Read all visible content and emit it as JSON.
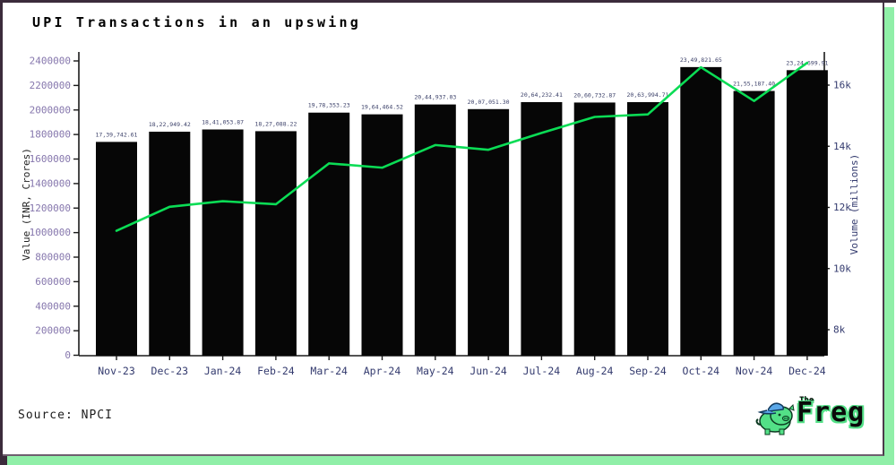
{
  "header": {
    "title": "UPI Transactions in an upswing"
  },
  "footer": {
    "source": "Source: NPCI",
    "logo_the": "The",
    "logo_freg": "Freg"
  },
  "colors": {
    "bar_fill": "#060606",
    "line_green": "#0bdc55",
    "left_tick_text": "#8677ad",
    "navy_tick_text": "#333a6e",
    "bar_label_text": "#3a3f68",
    "axis_line": "#1a1a1a",
    "axis_label_text": "#222222",
    "frame_border": "#3b2b3b",
    "shadow_green": "#90efa8",
    "logo_green": "#53e087",
    "logo_cap_blue": "#5aa7e8"
  },
  "chart_data": {
    "type": "bar",
    "title": "UPI Transactions in an upswing",
    "xlabel": "",
    "ylabel_left": "Value (INR, Crores)",
    "ylabel_right": "Volume (millions)",
    "legend": "none",
    "grid": false,
    "categories": [
      "Nov-23",
      "Dec-23",
      "Jan-24",
      "Feb-24",
      "Mar-24",
      "Apr-24",
      "May-24",
      "Jun-24",
      "Jul-24",
      "Aug-24",
      "Sep-24",
      "Oct-24",
      "Nov-24",
      "Dec-24"
    ],
    "series": [
      {
        "name": "Value (INR, Crores)",
        "type": "bar",
        "values": [
          1739742.61,
          1822949.42,
          1841053.87,
          1827088.22,
          1978353.23,
          1964464.52,
          2044937.03,
          2007051.3,
          2064232.41,
          2060732.87,
          2063994.71,
          2349821.65,
          2155187.4,
          2324699.91
        ],
        "labels": [
          "17,39,742.61",
          "18,22,949.42",
          "18,41,053.87",
          "18,27,088.22",
          "19,78,353.23",
          "19,64,464.52",
          "20,44,937.03",
          "20,07,051.30",
          "20,64,232.41",
          "20,60,732.87",
          "20,63,994.71",
          "23,49,821.65",
          "21,55,187.40",
          "23,24,699.91"
        ]
      },
      {
        "name": "Volume (millions)",
        "type": "line",
        "values": [
          11236,
          12020,
          12203,
          12103,
          13440,
          13300,
          14040,
          13885,
          14436,
          14960,
          15042,
          16585,
          15482,
          16730
        ]
      }
    ],
    "yticks_left": [
      0,
      200000,
      400000,
      600000,
      800000,
      1000000,
      1200000,
      1400000,
      1600000,
      1800000,
      2000000,
      2200000,
      2400000
    ],
    "yticks_right": [
      {
        "value": 8000,
        "label": "8k"
      },
      {
        "value": 10000,
        "label": "10k"
      },
      {
        "value": 12000,
        "label": "12k"
      },
      {
        "value": 14000,
        "label": "14k"
      },
      {
        "value": 16000,
        "label": "16k"
      }
    ],
    "ylim_left": [
      0,
      2470000
    ],
    "ylim_right": [
      7150,
      17100
    ]
  }
}
